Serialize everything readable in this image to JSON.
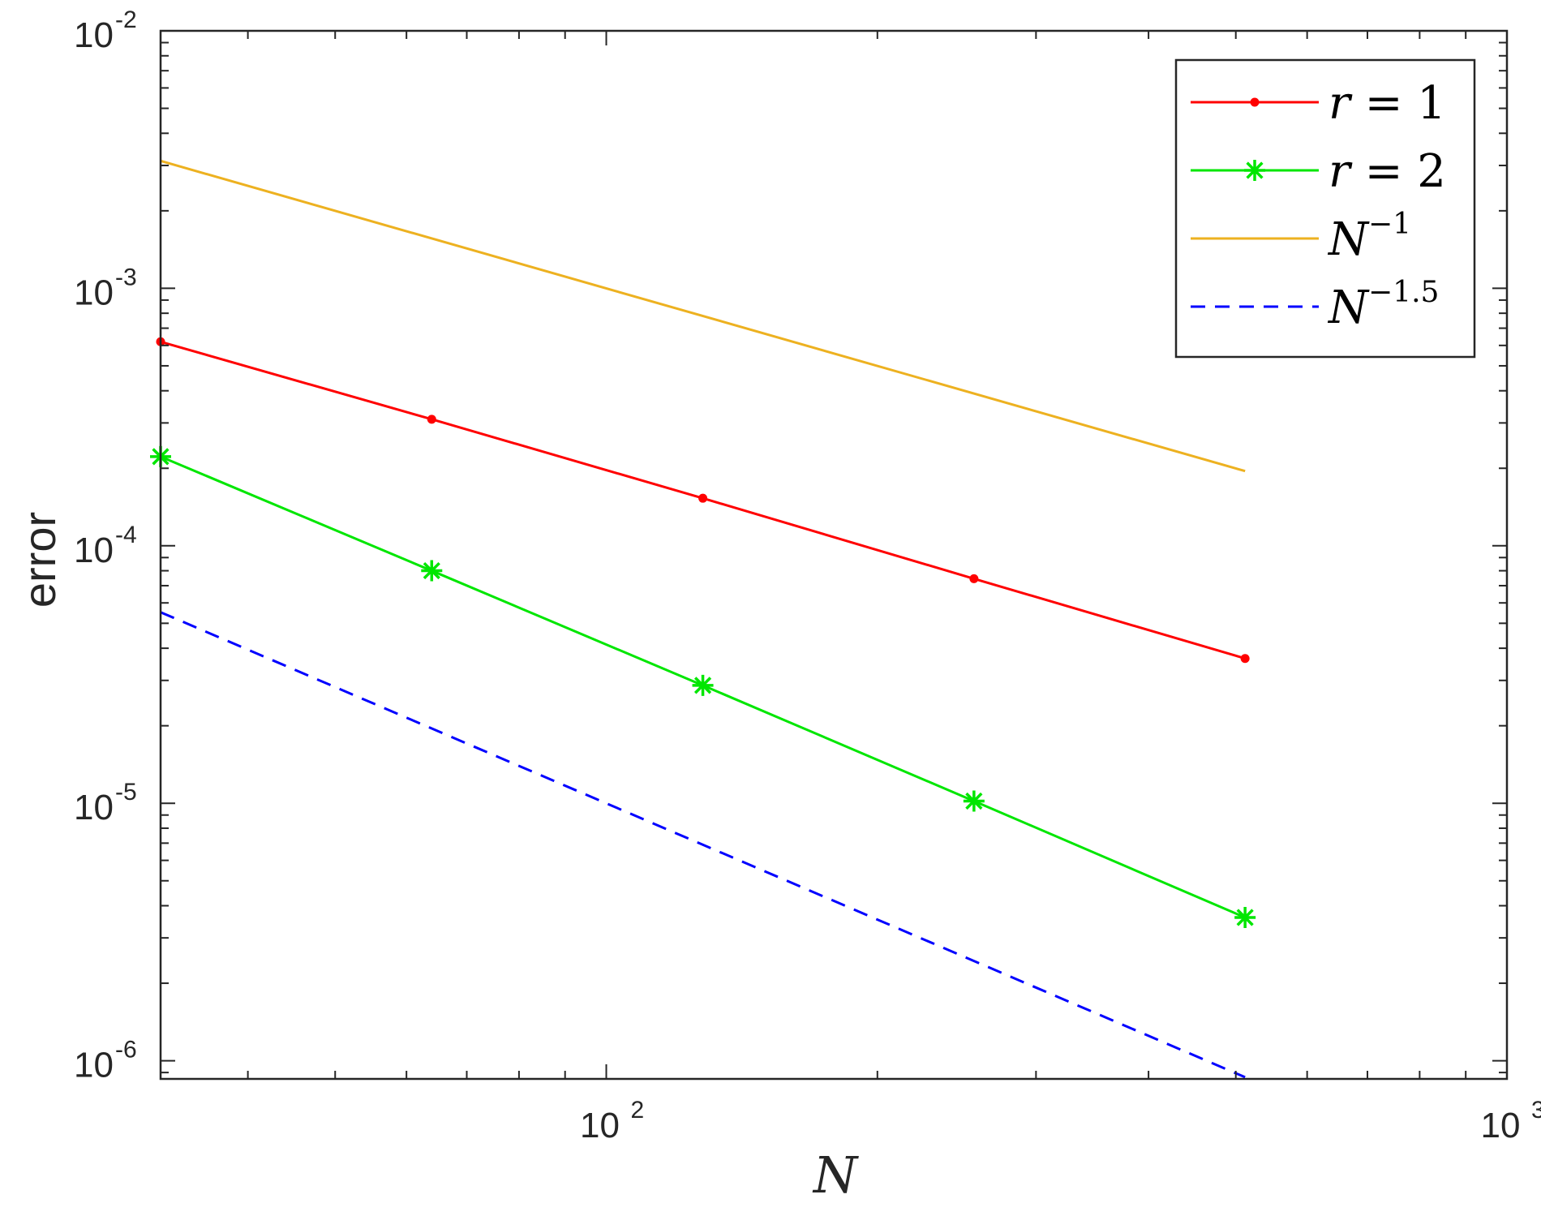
{
  "chart_data": {
    "type": "line",
    "xscale": "log",
    "yscale": "log",
    "xlim": [
      32,
      1000
    ],
    "ylim": [
      8.5e-07,
      0.01
    ],
    "xlabel": "N",
    "ylabel": "error",
    "grid": false,
    "legend_position": "top-right",
    "x_ticks": [
      {
        "base": "10",
        "exp": "2"
      },
      {
        "base": "10",
        "exp": "3"
      }
    ],
    "y_ticks": [
      {
        "base": "10",
        "exp": "-2"
      },
      {
        "base": "10",
        "exp": "-3"
      },
      {
        "base": "10",
        "exp": "-4"
      },
      {
        "base": "10",
        "exp": "-5"
      },
      {
        "base": "10",
        "exp": "-6"
      }
    ],
    "series": [
      {
        "legend": {
          "var": "r",
          "op": "=",
          "val": "1"
        },
        "color": "#ff0000",
        "marker": "dot",
        "dash": "none",
        "x": [
          32,
          64,
          128,
          256,
          512
        ],
        "y": [
          0.00062,
          0.00031,
          0.000153,
          7.45e-05,
          3.65e-05
        ]
      },
      {
        "legend": {
          "var": "r",
          "op": "=",
          "val": "2"
        },
        "color": "#00e600",
        "marker": "star",
        "dash": "none",
        "x": [
          32,
          64,
          128,
          256,
          512
        ],
        "y": [
          0.000222,
          8e-05,
          2.87e-05,
          1.02e-05,
          3.6e-06
        ]
      },
      {
        "legend": {
          "var": "N",
          "sup": "−1"
        },
        "color": "#edb120",
        "marker": "none",
        "dash": "none",
        "x": [
          32,
          512
        ],
        "y": [
          0.003125,
          0.000195
        ]
      },
      {
        "legend": {
          "var": "N",
          "sup": "−1.5"
        },
        "color": "#0000ff",
        "marker": "none",
        "dash": "dashed",
        "x": [
          32,
          512
        ],
        "y": [
          5.52e-05,
          8.63e-07
        ]
      }
    ]
  }
}
